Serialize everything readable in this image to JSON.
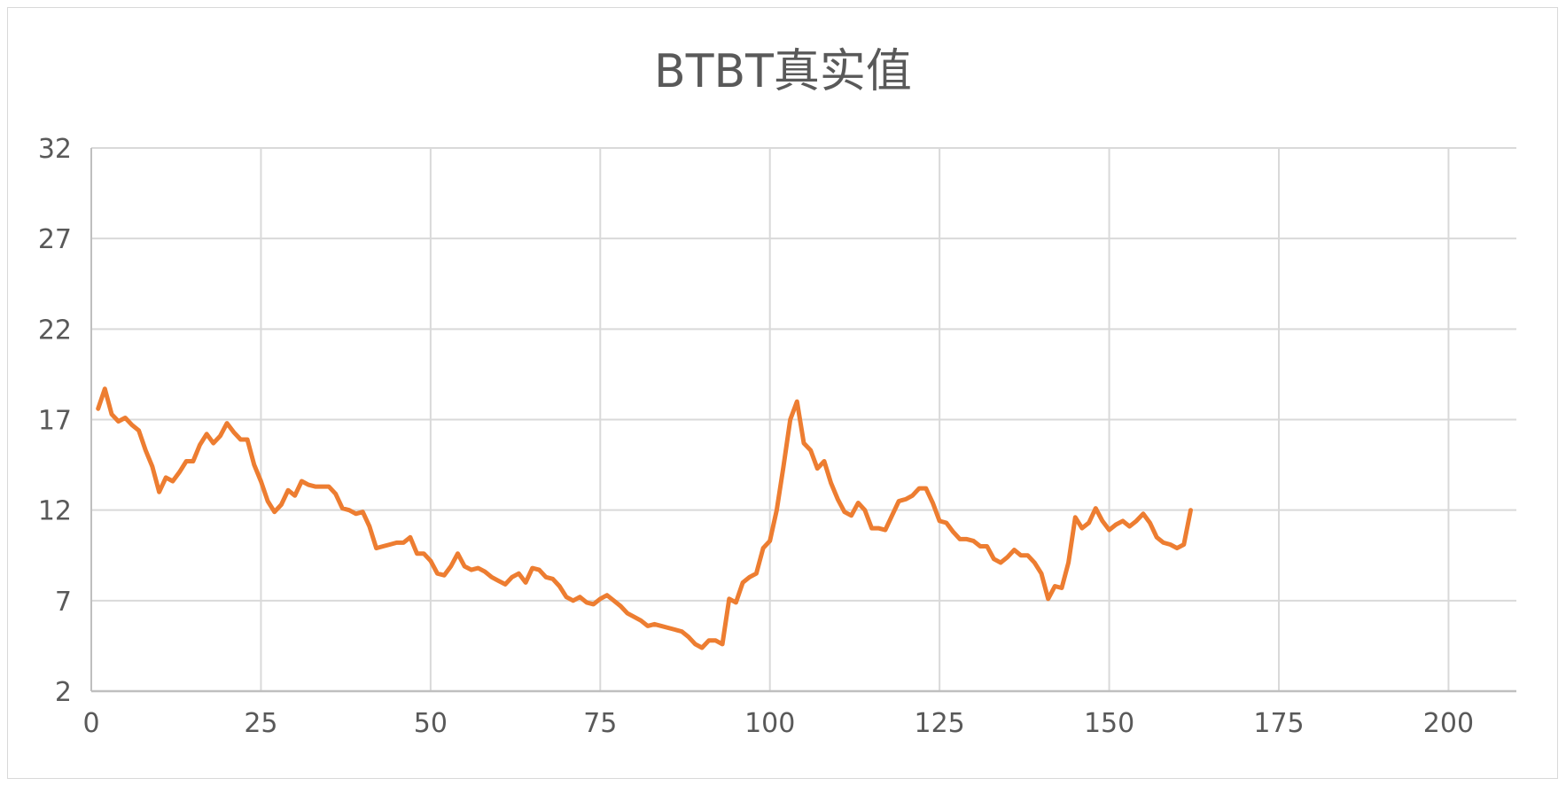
{
  "chart_data": {
    "type": "line",
    "title": "BTBT真实值",
    "xlabel": "",
    "ylabel": "",
    "xlim": [
      0,
      210
    ],
    "ylim": [
      2,
      32
    ],
    "x_ticks": [
      "0",
      "25",
      "50",
      "75",
      "100",
      "125",
      "150",
      "175",
      "200"
    ],
    "y_ticks": [
      "2",
      "7",
      "12",
      "17",
      "22",
      "27",
      "32"
    ],
    "grid": true,
    "legend": "none",
    "series": [
      {
        "color": "#ED7D31",
        "x": [
          1,
          2,
          3,
          4,
          5,
          6,
          7,
          8,
          9,
          10,
          11,
          12,
          13,
          14,
          15,
          16,
          17,
          18,
          19,
          20,
          21,
          22,
          23,
          24,
          25,
          26,
          27,
          28,
          29,
          30,
          31,
          32,
          33,
          34,
          35,
          36,
          37,
          38,
          39,
          40,
          41,
          42,
          43,
          44,
          45,
          46,
          47,
          48,
          49,
          50,
          51,
          52,
          53,
          54,
          55,
          56,
          57,
          58,
          59,
          60,
          61,
          62,
          63,
          64,
          65,
          66,
          67,
          68,
          69,
          70,
          71,
          72,
          73,
          74,
          75,
          76,
          77,
          78,
          79,
          80,
          81,
          82,
          83,
          84,
          85,
          86,
          87,
          88,
          89,
          90,
          91,
          92,
          93,
          94,
          95,
          96,
          97,
          98,
          99,
          100,
          101,
          102,
          103,
          104,
          105,
          106,
          107,
          108,
          109,
          110,
          111,
          112,
          113,
          114,
          115,
          116,
          117,
          118,
          119,
          120,
          121,
          122,
          123,
          124,
          125,
          126,
          127,
          128,
          129,
          130,
          131,
          132,
          133,
          134,
          135,
          136,
          137,
          138,
          139,
          140,
          141,
          142,
          143,
          144,
          145,
          146,
          147,
          148,
          149,
          150,
          151,
          152,
          153,
          154,
          155,
          156,
          157,
          158,
          159,
          160,
          161,
          162
        ],
        "values": [
          17.6,
          18.7,
          17.3,
          16.9,
          17.1,
          16.7,
          16.4,
          15.3,
          14.4,
          13.0,
          13.8,
          13.6,
          14.1,
          14.7,
          14.7,
          15.6,
          16.2,
          15.7,
          16.1,
          16.8,
          16.3,
          15.9,
          15.9,
          14.5,
          13.6,
          12.5,
          11.9,
          12.3,
          13.1,
          12.8,
          13.6,
          13.4,
          13.3,
          13.3,
          13.3,
          12.9,
          12.1,
          12.0,
          11.8,
          11.9,
          11.1,
          9.9,
          10.0,
          10.1,
          10.2,
          10.2,
          10.5,
          9.6,
          9.6,
          9.2,
          8.5,
          8.4,
          8.9,
          9.6,
          8.9,
          8.7,
          8.8,
          8.6,
          8.3,
          8.1,
          7.9,
          8.3,
          8.5,
          8.0,
          8.8,
          8.7,
          8.3,
          8.2,
          7.8,
          7.2,
          7.0,
          7.2,
          6.9,
          6.8,
          7.1,
          7.3,
          7.0,
          6.7,
          6.3,
          6.1,
          5.9,
          5.6,
          5.7,
          5.6,
          5.5,
          5.4,
          5.3,
          5.0,
          4.6,
          4.4,
          4.8,
          4.8,
          4.6,
          7.1,
          6.9,
          8.0,
          8.3,
          8.5,
          9.9,
          10.3,
          12.0,
          14.4,
          17.0,
          18.0,
          15.7,
          15.3,
          14.3,
          14.7,
          13.5,
          12.6,
          11.9,
          11.7,
          12.4,
          12.0,
          11.0,
          11.0,
          10.9,
          11.7,
          12.5,
          12.6,
          12.8,
          13.2,
          13.2,
          12.4,
          11.4,
          11.3,
          10.8,
          10.4,
          10.4,
          10.3,
          10.0,
          10.0,
          9.3,
          9.1,
          9.4,
          9.8,
          9.5,
          9.5,
          9.1,
          8.5,
          7.1,
          7.8,
          7.7,
          9.1,
          11.6,
          11.0,
          11.3,
          12.1,
          11.4,
          10.9,
          11.2,
          11.4,
          11.1,
          11.4,
          11.8,
          11.3,
          10.5,
          10.2,
          10.1,
          9.9,
          10.1,
          12.0
        ]
      }
    ]
  }
}
